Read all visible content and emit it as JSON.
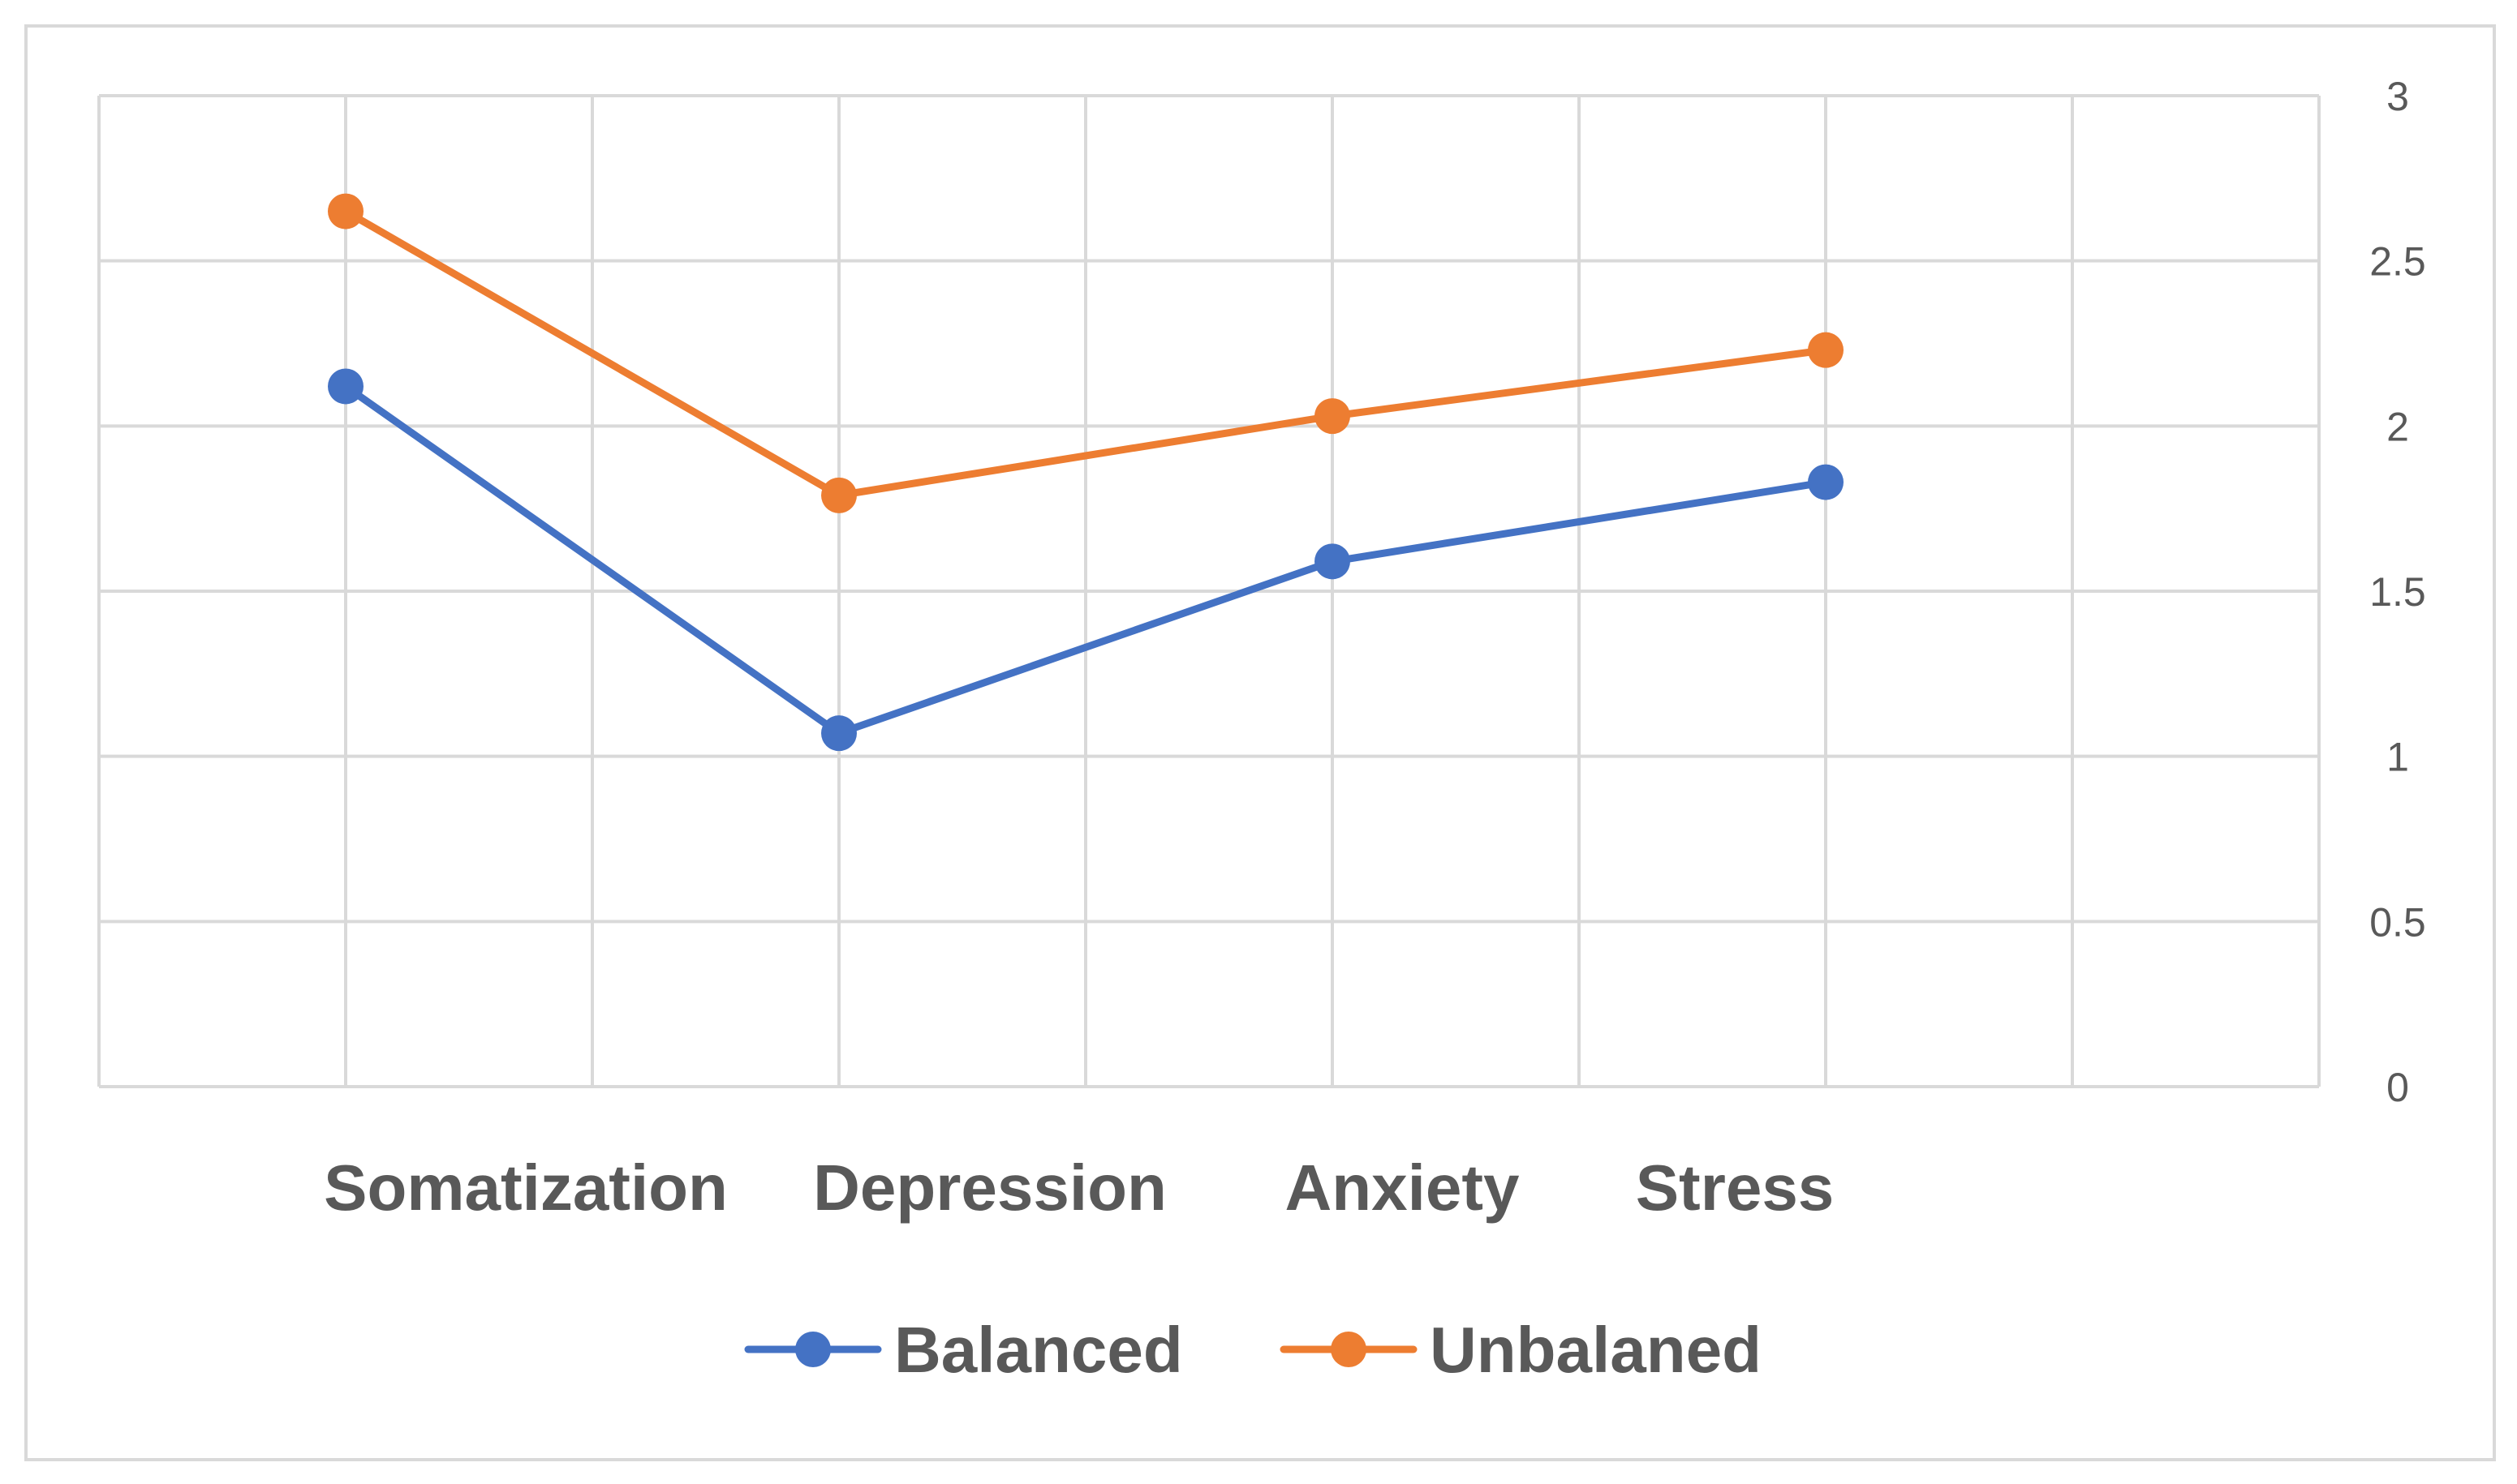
{
  "chart_data": {
    "type": "line",
    "title": "",
    "xlabel": "",
    "ylabel": "",
    "categories": [
      "Somatization",
      "Depression",
      "Anxiety",
      "Stress"
    ],
    "series": [
      {
        "name": "Balanced",
        "values": [
          2.12,
          1.07,
          1.59,
          1.83
        ],
        "color": "#4472C4"
      },
      {
        "name": "Unbalaned",
        "values": [
          2.65,
          1.79,
          2.03,
          2.23
        ],
        "color": "#ED7D31"
      }
    ],
    "ylim": [
      0,
      3
    ],
    "yticks": [
      "0",
      "0.5",
      "1",
      "1.5",
      "2",
      "2.5",
      "3"
    ],
    "y_axis_position": "right",
    "grid": true,
    "legend_position": "bottom"
  }
}
